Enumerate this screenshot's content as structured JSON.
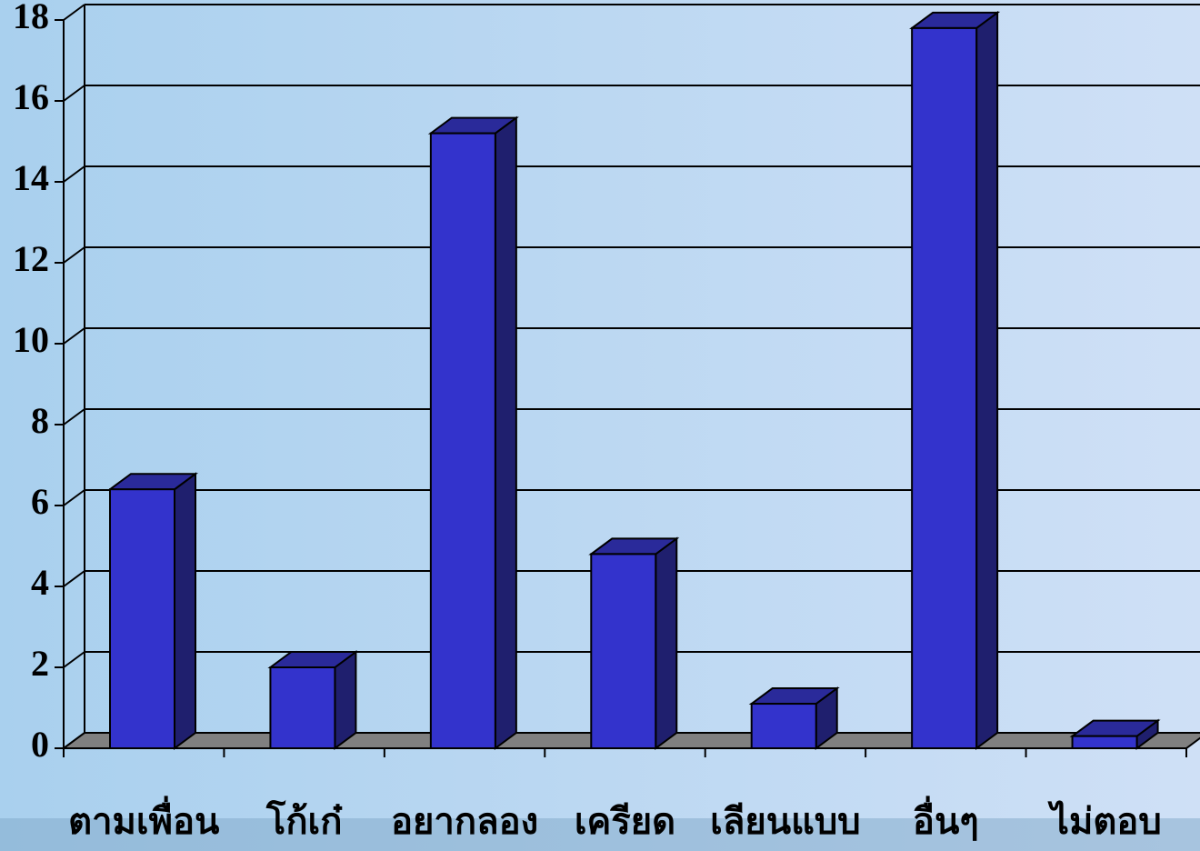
{
  "chart_data": {
    "type": "bar3d",
    "categories": [
      "ตามเพื่อน",
      "โก้เก๋",
      "อยากลอง",
      "เครียด",
      "เลียนแบบ",
      "อื่นๆ",
      "ไม่ตอบ"
    ],
    "values": [
      6.4,
      2,
      15.2,
      4.8,
      1.1,
      17.8,
      0.3
    ],
    "color": "#3333cc",
    "ylim": [
      0,
      18
    ],
    "yticks": [
      0,
      2,
      4,
      6,
      8,
      10,
      12,
      14,
      16,
      18
    ],
    "grid": true
  }
}
